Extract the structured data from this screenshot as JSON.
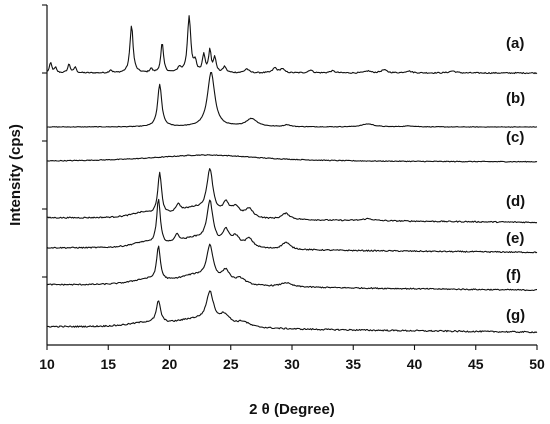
{
  "chart_data": {
    "type": "line",
    "xlabel": "2 θ  (Degree)",
    "ylabel": "Intensity (cps)",
    "xlim": [
      10,
      50
    ],
    "x_ticks": [
      10,
      15,
      20,
      25,
      30,
      35,
      40,
      45,
      50
    ],
    "y_tick_count": 5,
    "grid": false,
    "legend": "none",
    "series": [
      {
        "name": "(a)",
        "baseline": 0.145,
        "noise": 0.006,
        "slope": 0,
        "peaks": [
          [
            10.3,
            0.1,
            0.12
          ],
          [
            10.7,
            0.05,
            0.1
          ],
          [
            11.8,
            0.09,
            0.12
          ],
          [
            12.3,
            0.06,
            0.1
          ],
          [
            15.2,
            0.03,
            0.12
          ],
          [
            16.9,
            0.48,
            0.15
          ],
          [
            18.5,
            0.04,
            0.12
          ],
          [
            19.4,
            0.3,
            0.13
          ],
          [
            20.8,
            0.05,
            0.15
          ],
          [
            21.6,
            0.56,
            0.16
          ],
          [
            22.1,
            0.1,
            0.12
          ],
          [
            22.8,
            0.18,
            0.13
          ],
          [
            23.3,
            0.22,
            0.12
          ],
          [
            23.7,
            0.15,
            0.12
          ],
          [
            24.5,
            0.06,
            0.15
          ],
          [
            26.3,
            0.04,
            0.2
          ],
          [
            28.6,
            0.05,
            0.2
          ],
          [
            29.2,
            0.04,
            0.2
          ],
          [
            31.5,
            0.03,
            0.2
          ],
          [
            33.3,
            0.02,
            0.25
          ],
          [
            36.2,
            0.02,
            0.25
          ],
          [
            37.5,
            0.03,
            0.3
          ],
          [
            39.5,
            0.02,
            0.3
          ],
          [
            43.1,
            0.02,
            0.3
          ]
        ]
      },
      {
        "name": "(b)",
        "baseline": 0.13,
        "noise": 0.003,
        "slope": 0,
        "peaks": [
          [
            19.2,
            0.42,
            0.2
          ],
          [
            23.4,
            0.55,
            0.35
          ],
          [
            26.7,
            0.08,
            0.55
          ],
          [
            29.6,
            0.02,
            0.3
          ],
          [
            36.2,
            0.03,
            0.6
          ],
          [
            39.6,
            0.01,
            0.6
          ]
        ]
      },
      {
        "name": "(c)",
        "baseline": 0.17,
        "noise": 0.004,
        "slope": 0,
        "peaks": [
          [
            23.0,
            0.07,
            5.5
          ]
        ]
      },
      {
        "name": "(d)",
        "baseline": 0.19,
        "noise": 0.006,
        "slope": -0.0011,
        "peaks": [
          [
            17.8,
            0.05,
            1.2
          ],
          [
            19.2,
            0.42,
            0.18
          ],
          [
            20.7,
            0.08,
            0.25
          ],
          [
            22.0,
            0.1,
            1.5
          ],
          [
            23.3,
            0.44,
            0.3
          ],
          [
            24.6,
            0.12,
            0.3
          ],
          [
            25.4,
            0.1,
            0.4
          ],
          [
            26.5,
            0.09,
            0.4
          ],
          [
            29.5,
            0.06,
            0.4
          ],
          [
            36.2,
            0.02,
            0.5
          ]
        ]
      },
      {
        "name": "(e)",
        "baseline": 0.2,
        "noise": 0.006,
        "slope": -0.0011,
        "peaks": [
          [
            17.8,
            0.05,
            1.2
          ],
          [
            19.1,
            0.45,
            0.18
          ],
          [
            20.6,
            0.08,
            0.25
          ],
          [
            22.0,
            0.1,
            1.5
          ],
          [
            23.3,
            0.42,
            0.3
          ],
          [
            24.6,
            0.15,
            0.3
          ],
          [
            25.4,
            0.1,
            0.4
          ],
          [
            26.5,
            0.09,
            0.4
          ],
          [
            29.5,
            0.07,
            0.4
          ]
        ]
      },
      {
        "name": "(f)",
        "baseline": 0.2,
        "noise": 0.006,
        "slope": -0.0013,
        "peaks": [
          [
            18.0,
            0.05,
            1.5
          ],
          [
            19.1,
            0.34,
            0.18
          ],
          [
            22.0,
            0.1,
            1.8
          ],
          [
            23.3,
            0.34,
            0.32
          ],
          [
            24.6,
            0.12,
            0.4
          ],
          [
            25.8,
            0.06,
            0.5
          ],
          [
            29.5,
            0.04,
            0.5
          ]
        ]
      },
      {
        "name": "(g)",
        "baseline": 0.2,
        "noise": 0.007,
        "slope": -0.0013,
        "peaks": [
          [
            18.0,
            0.04,
            1.8
          ],
          [
            19.1,
            0.22,
            0.2
          ],
          [
            22.0,
            0.08,
            2.0
          ],
          [
            23.3,
            0.3,
            0.35
          ],
          [
            24.5,
            0.1,
            0.5
          ],
          [
            26.0,
            0.05,
            0.6
          ]
        ]
      }
    ]
  }
}
